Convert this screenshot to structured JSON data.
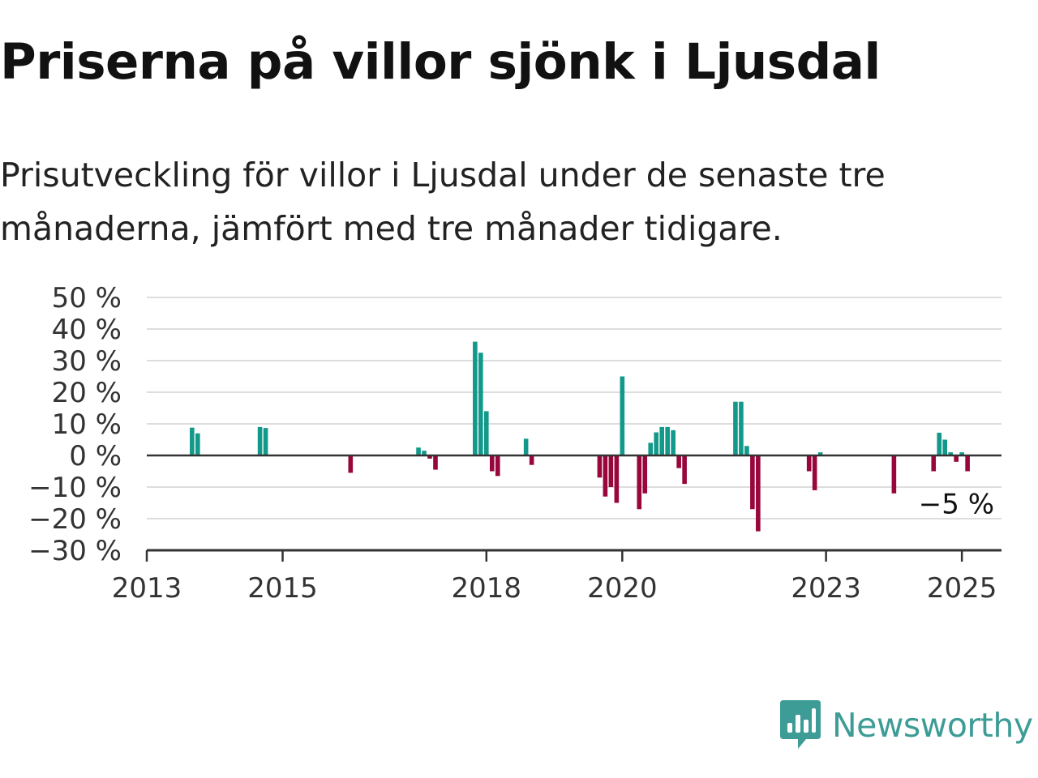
{
  "header": {
    "title": "Priserna på villor sjönk i Ljusdal",
    "subtitle": "Prisutveckling för villor i Ljusdal under de senaste tre månaderna, jämfört med tre månader tidigare."
  },
  "brand": {
    "name": "Newsworthy",
    "color": "#3d9c96",
    "icon": "newsworthy-logo-icon"
  },
  "colors": {
    "positive": "#13998a",
    "negative": "#98063b",
    "grid": "#dddddd",
    "axis": "#333333"
  },
  "chart_data": {
    "type": "bar",
    "title": "Priserna på villor sjönk i Ljusdal",
    "xlabel": "",
    "ylabel": "",
    "ylim": [
      -30,
      50
    ],
    "yticks": [
      50,
      40,
      30,
      20,
      10,
      0,
      -10,
      -20,
      -30
    ],
    "ytick_labels": [
      "50 %",
      "40 %",
      "30 %",
      "20 %",
      "10 %",
      "0 %",
      "−10 %",
      "−20 %",
      "−30 %"
    ],
    "xlim": [
      "2013-01",
      "2025-08"
    ],
    "xticks": [
      "2013-01",
      "2015-01",
      "2018-01",
      "2020-01",
      "2023-01",
      "2025-01"
    ],
    "xtick_labels": [
      "2013",
      "2015",
      "2018",
      "2020",
      "2023",
      "2025"
    ],
    "grid": true,
    "end_label": "−5 %",
    "series": [
      {
        "x": [
          "2013-09",
          "2013-10",
          "2014-09",
          "2014-10",
          "2016-01",
          "2017-01",
          "2017-02",
          "2017-03",
          "2017-04",
          "2017-11",
          "2017-12",
          "2018-01",
          "2018-02",
          "2018-03",
          "2018-08",
          "2018-09",
          "2019-09",
          "2019-10",
          "2019-11",
          "2019-12",
          "2020-01",
          "2020-04",
          "2020-05",
          "2020-06",
          "2020-07",
          "2020-08",
          "2020-09",
          "2020-10",
          "2020-11",
          "2020-12",
          "2021-09",
          "2021-10",
          "2021-11",
          "2021-12",
          "2022-01",
          "2022-10",
          "2022-11",
          "2022-12",
          "2024-01",
          "2024-08",
          "2024-09",
          "2024-10",
          "2024-11",
          "2024-12",
          "2025-01",
          "2025-02"
        ],
        "values": [
          8.8,
          7,
          9,
          8.7,
          -5.5,
          2.5,
          1.5,
          -1,
          -4.5,
          36,
          32.5,
          14,
          -5,
          -6.5,
          5.3,
          -3,
          -7,
          -13,
          -10,
          -15,
          25,
          -17,
          -12,
          4,
          7.3,
          9,
          9,
          8,
          -4,
          -9,
          17,
          17,
          3,
          -17,
          -24,
          -5,
          -11,
          1,
          -12,
          -5,
          7.2,
          5,
          1,
          -2,
          1,
          -5
        ]
      }
    ]
  }
}
